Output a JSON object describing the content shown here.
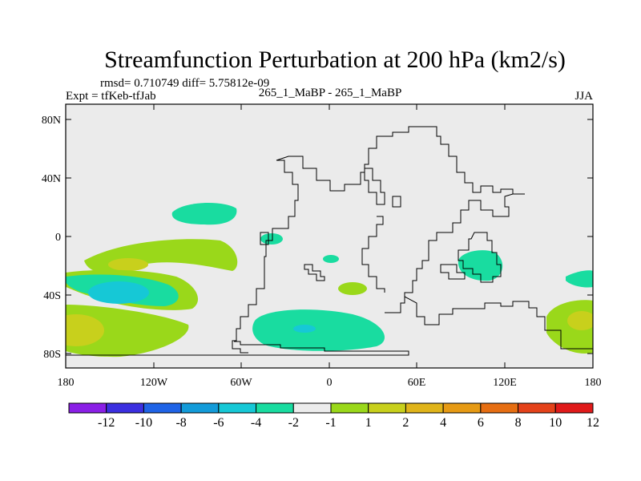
{
  "title": "Streamfunction Perturbation at 200 hPa (km2/s)",
  "stats": "rmsd= 0.710749 diff= 5.75812e-09",
  "expt": "Expt = tfKeb-tfJab",
  "case_label": "265_1_MaBP - 265_1_MaBP",
  "season": "JJA",
  "lat_ticks": [
    "80N",
    "40N",
    "0",
    "40S",
    "80S"
  ],
  "lon_ticks": [
    "180",
    "120W",
    "60W",
    "0",
    "60E",
    "120E",
    "180"
  ],
  "colorbar": {
    "labels": [
      "-12",
      "-10",
      "-8",
      "-6",
      "-4",
      "-2",
      "-1",
      "1",
      "2",
      "4",
      "6",
      "8",
      "10",
      "12"
    ],
    "colors": [
      "#8a1fe6",
      "#3b2fe0",
      "#1f63e6",
      "#139bd9",
      "#16c8d6",
      "#19dca0",
      "#ececec",
      "#9ad81a",
      "#c8d01c",
      "#e0b41a",
      "#e69a14",
      "#e66e12",
      "#e4421a",
      "#e01a1a"
    ]
  }
}
